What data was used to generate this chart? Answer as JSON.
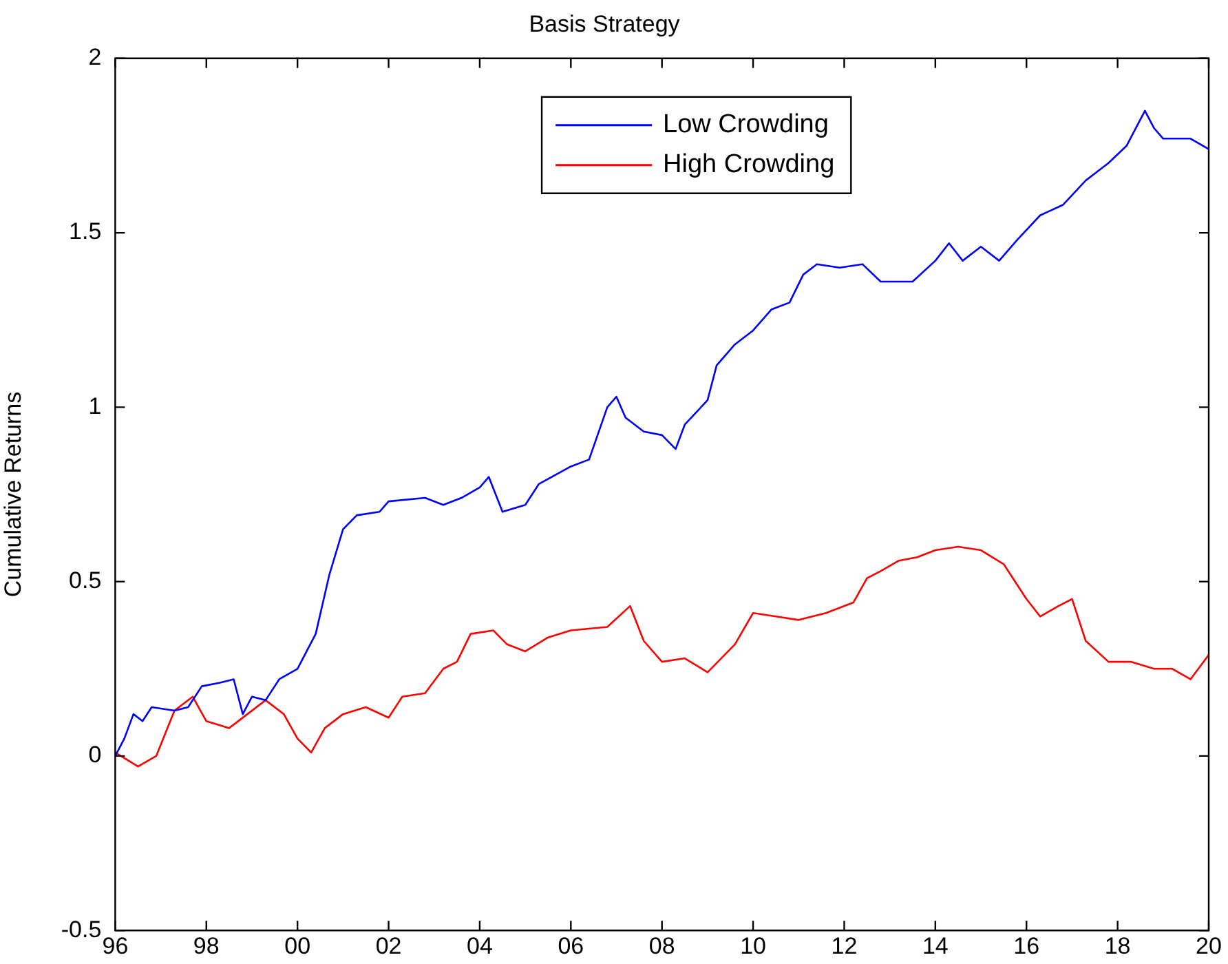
{
  "chart_data": {
    "type": "line",
    "title": "Basis Strategy",
    "ylabel": "Cumulative Returns",
    "xlim": [
      1996,
      2020
    ],
    "xticks": [
      {
        "value": 1996,
        "label": "96"
      },
      {
        "value": 1998,
        "label": "98"
      },
      {
        "value": 2000,
        "label": "00"
      },
      {
        "value": 2002,
        "label": "02"
      },
      {
        "value": 2004,
        "label": "04"
      },
      {
        "value": 2006,
        "label": "06"
      },
      {
        "value": 2008,
        "label": "08"
      },
      {
        "value": 2010,
        "label": "10"
      },
      {
        "value": 2012,
        "label": "12"
      },
      {
        "value": 2014,
        "label": "14"
      },
      {
        "value": 2016,
        "label": "16"
      },
      {
        "value": 2018,
        "label": "18"
      },
      {
        "value": 2020,
        "label": "20"
      }
    ],
    "ylim": [
      -0.5,
      2
    ],
    "yticks": [
      -0.5,
      0,
      0.5,
      1,
      1.5,
      2
    ],
    "grid": false,
    "legend": "top",
    "marker": "none",
    "line_style": "solid",
    "series": [
      {
        "name": "Low Crowding",
        "color": "#0000ff",
        "x": [
          1996.0,
          1996.2,
          1996.4,
          1996.6,
          1996.8,
          1997.3,
          1997.6,
          1997.9,
          1998.3,
          1998.6,
          1998.8,
          1999.0,
          1999.3,
          1999.6,
          2000.0,
          2000.4,
          2000.7,
          2001.0,
          2001.3,
          2001.8,
          2002.0,
          2002.8,
          2003.2,
          2003.6,
          2004.0,
          2004.2,
          2004.5,
          2005.0,
          2005.3,
          2006.0,
          2006.4,
          2006.8,
          2007.0,
          2007.2,
          2007.6,
          2008.0,
          2008.3,
          2008.5,
          2009.0,
          2009.2,
          2009.6,
          2010.0,
          2010.4,
          2010.8,
          2011.1,
          2011.4,
          2011.9,
          2012.4,
          2012.8,
          2013.5,
          2014.0,
          2014.3,
          2014.6,
          2015.0,
          2015.4,
          2015.8,
          2016.3,
          2016.8,
          2017.3,
          2017.8,
          2018.2,
          2018.6,
          2018.8,
          2019.0,
          2019.6,
          2020.0
        ],
        "values": [
          0.0,
          0.05,
          0.12,
          0.1,
          0.14,
          0.13,
          0.14,
          0.2,
          0.21,
          0.22,
          0.12,
          0.17,
          0.16,
          0.22,
          0.25,
          0.35,
          0.52,
          0.65,
          0.69,
          0.7,
          0.73,
          0.74,
          0.72,
          0.74,
          0.77,
          0.8,
          0.7,
          0.72,
          0.78,
          0.83,
          0.85,
          1.0,
          1.03,
          0.97,
          0.93,
          0.92,
          0.88,
          0.95,
          1.02,
          1.12,
          1.18,
          1.22,
          1.28,
          1.3,
          1.38,
          1.41,
          1.4,
          1.41,
          1.36,
          1.36,
          1.42,
          1.47,
          1.42,
          1.46,
          1.42,
          1.48,
          1.55,
          1.58,
          1.65,
          1.7,
          1.75,
          1.85,
          1.8,
          1.77,
          1.77,
          1.74
        ]
      },
      {
        "name": "High Crowding",
        "color": "#ff0000",
        "x": [
          1996.0,
          1996.5,
          1996.9,
          1997.3,
          1997.7,
          1998.0,
          1998.5,
          1998.9,
          1999.3,
          1999.7,
          2000.0,
          2000.3,
          2000.6,
          2001.0,
          2001.5,
          2002.0,
          2002.3,
          2002.8,
          2003.2,
          2003.5,
          2003.8,
          2004.3,
          2004.6,
          2005.0,
          2005.5,
          2006.0,
          2006.8,
          2007.3,
          2007.6,
          2008.0,
          2008.5,
          2009.0,
          2009.3,
          2009.6,
          2010.0,
          2010.5,
          2011.0,
          2011.6,
          2012.2,
          2012.5,
          2012.8,
          2013.2,
          2013.6,
          2014.0,
          2014.5,
          2015.0,
          2015.5,
          2016.0,
          2016.3,
          2016.7,
          2017.0,
          2017.3,
          2017.8,
          2018.3,
          2018.8,
          2019.2,
          2019.6,
          2020.0
        ],
        "values": [
          0.01,
          -0.03,
          0.0,
          0.13,
          0.17,
          0.1,
          0.08,
          0.12,
          0.16,
          0.12,
          0.05,
          0.01,
          0.08,
          0.12,
          0.14,
          0.11,
          0.17,
          0.18,
          0.25,
          0.27,
          0.35,
          0.36,
          0.32,
          0.3,
          0.34,
          0.36,
          0.37,
          0.43,
          0.33,
          0.27,
          0.28,
          0.24,
          0.28,
          0.32,
          0.41,
          0.4,
          0.39,
          0.41,
          0.44,
          0.51,
          0.53,
          0.56,
          0.57,
          0.59,
          0.6,
          0.59,
          0.55,
          0.45,
          0.4,
          0.43,
          0.45,
          0.33,
          0.27,
          0.27,
          0.25,
          0.25,
          0.22,
          0.29
        ]
      }
    ]
  }
}
